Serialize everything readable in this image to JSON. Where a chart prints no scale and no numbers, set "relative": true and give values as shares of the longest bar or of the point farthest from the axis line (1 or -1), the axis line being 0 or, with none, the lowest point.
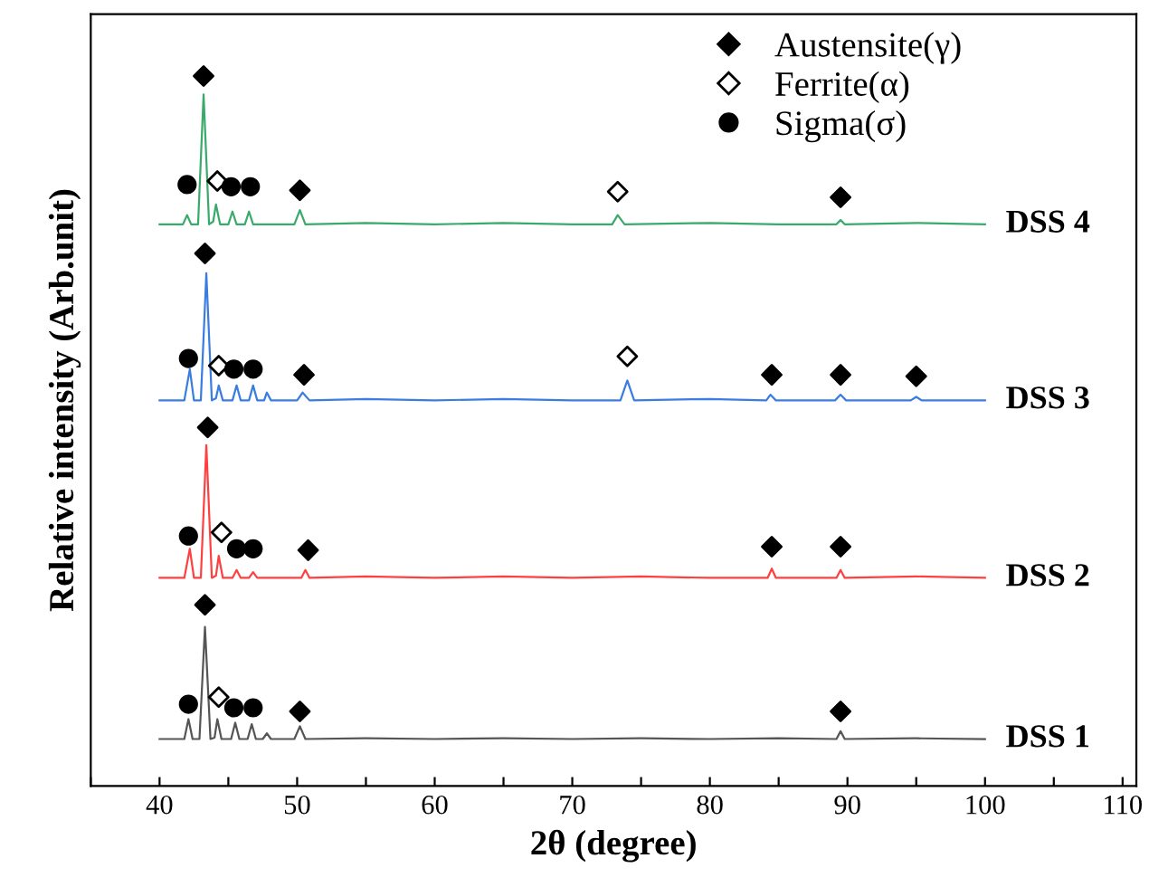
{
  "chart_data": {
    "type": "line",
    "relative": true,
    "xlabel": "2θ (degree)",
    "ylabel": "Relative intensity (Arb.unit)",
    "xlim": [
      35,
      111
    ],
    "xticks": [
      {
        "value": 35,
        "label": null
      },
      40,
      {
        "value": 45,
        "label": null
      },
      50,
      {
        "value": 55,
        "label": null
      },
      60,
      {
        "value": 65,
        "label": null
      },
      70,
      {
        "value": 75,
        "label": null
      },
      80,
      {
        "value": 85,
        "label": null
      },
      90,
      {
        "value": 95,
        "label": null
      },
      100,
      {
        "value": 105,
        "label": null
      },
      110
    ],
    "grid": false,
    "legend": "top right",
    "series": [
      {
        "name": "DSS 1",
        "color": "#555555",
        "marker": "none",
        "x": [
          40,
          41.8,
          42.1,
          42.4,
          42.9,
          43.3,
          43.7,
          44.0,
          44.2,
          44.5,
          45.2,
          45.5,
          45.8,
          46.4,
          46.7,
          47.0,
          47.5,
          47.8,
          48.1,
          49.8,
          50.2,
          50.6,
          55,
          60,
          65,
          70,
          75,
          80,
          85,
          89.2,
          89.5,
          89.8,
          95,
          100
        ],
        "values": [
          0.066,
          0.066,
          0.094,
          0.066,
          0.066,
          0.224,
          0.066,
          0.068,
          0.094,
          0.066,
          0.066,
          0.089,
          0.066,
          0.066,
          0.087,
          0.066,
          0.066,
          0.074,
          0.066,
          0.066,
          0.084,
          0.066,
          0.067,
          0.066,
          0.067,
          0.066,
          0.067,
          0.066,
          0.067,
          0.066,
          0.077,
          0.066,
          0.067,
          0.066
        ]
      },
      {
        "name": "DSS 2",
        "color": "#ff4040",
        "marker": "none",
        "x": [
          40,
          41.8,
          42.2,
          42.5,
          43.0,
          43.4,
          43.8,
          44.1,
          44.3,
          44.6,
          45.3,
          45.6,
          45.9,
          46.5,
          46.8,
          47.1,
          50.3,
          50.6,
          50.9,
          55,
          60,
          65,
          70,
          75,
          80,
          84.2,
          84.5,
          84.8,
          89.2,
          89.5,
          89.8,
          95,
          100
        ],
        "values": [
          0.293,
          0.293,
          0.334,
          0.293,
          0.293,
          0.48,
          0.293,
          0.296,
          0.324,
          0.293,
          0.293,
          0.304,
          0.293,
          0.293,
          0.301,
          0.293,
          0.293,
          0.304,
          0.293,
          0.295,
          0.293,
          0.295,
          0.293,
          0.295,
          0.293,
          0.293,
          0.306,
          0.293,
          0.293,
          0.304,
          0.293,
          0.295,
          0.293
        ]
      },
      {
        "name": "DSS 3",
        "color": "#3a7de0",
        "marker": "none",
        "x": [
          40,
          41.8,
          42.2,
          42.5,
          43.0,
          43.4,
          43.8,
          44.1,
          44.3,
          44.6,
          45.3,
          45.6,
          45.9,
          46.5,
          46.8,
          47.1,
          47.6,
          47.8,
          48.1,
          50.0,
          50.4,
          50.9,
          55,
          60,
          65,
          70,
          73.5,
          74.0,
          74.5,
          80,
          84.1,
          84.4,
          84.8,
          89.1,
          89.5,
          89.9,
          94.6,
          95.0,
          95.4,
          100
        ],
        "values": [
          0.543,
          0.543,
          0.587,
          0.543,
          0.543,
          0.722,
          0.543,
          0.546,
          0.564,
          0.543,
          0.543,
          0.564,
          0.543,
          0.543,
          0.564,
          0.543,
          0.543,
          0.554,
          0.543,
          0.543,
          0.554,
          0.543,
          0.545,
          0.543,
          0.545,
          0.543,
          0.543,
          0.571,
          0.543,
          0.545,
          0.543,
          0.551,
          0.543,
          0.543,
          0.551,
          0.543,
          0.543,
          0.548,
          0.543,
          0.543
        ]
      },
      {
        "name": "DSS 4",
        "color": "#3aaa6a",
        "marker": "none",
        "x": [
          40,
          41.7,
          42.0,
          42.3,
          42.8,
          43.2,
          43.6,
          43.9,
          44.1,
          44.4,
          45.0,
          45.3,
          45.6,
          46.2,
          46.5,
          46.8,
          49.8,
          50.2,
          50.6,
          55,
          60,
          65,
          70,
          72.9,
          73.3,
          73.8,
          80,
          85,
          89.2,
          89.5,
          89.8,
          95,
          100
        ],
        "values": [
          0.791,
          0.791,
          0.804,
          0.791,
          0.791,
          0.974,
          0.791,
          0.795,
          0.819,
          0.791,
          0.791,
          0.809,
          0.791,
          0.791,
          0.809,
          0.791,
          0.791,
          0.811,
          0.791,
          0.793,
          0.791,
          0.793,
          0.791,
          0.791,
          0.804,
          0.791,
          0.793,
          0.791,
          0.791,
          0.797,
          0.791,
          0.793,
          0.791
        ]
      },
      {
        "name": "Austensite(γ)",
        "type": "scatter",
        "color": "#000000",
        "marker": "diamond",
        "x": [
          43.3,
          50.2,
          89.5,
          43.5,
          50.8,
          84.5,
          89.5,
          43.3,
          50.5,
          84.5,
          89.5,
          95.0,
          43.2,
          50.2,
          89.5
        ],
        "values": [
          0.255,
          0.105,
          0.105,
          0.505,
          0.332,
          0.337,
          0.337,
          0.75,
          0.579,
          0.579,
          0.579,
          0.577,
          1.0,
          0.839,
          0.829
        ]
      },
      {
        "name": "Ferrite(α)",
        "type": "scatter",
        "color": "#ffffff",
        "marker": "diamond",
        "x": [
          44.3,
          44.5,
          44.3,
          74.0,
          44.2,
          73.3
        ],
        "values": [
          0.125,
          0.357,
          0.592,
          0.605,
          0.852,
          0.837
        ]
      },
      {
        "name": "Sigma(σ)",
        "type": "scatter",
        "color": "#000000",
        "marker": "circle",
        "x": [
          42.1,
          45.4,
          46.8,
          42.1,
          45.6,
          46.8,
          42.1,
          45.4,
          46.8,
          42.0,
          45.2,
          46.6
        ],
        "values": [
          0.115,
          0.11,
          0.11,
          0.352,
          0.334,
          0.334,
          0.602,
          0.587,
          0.587,
          0.847,
          0.844,
          0.844
        ]
      }
    ]
  }
}
